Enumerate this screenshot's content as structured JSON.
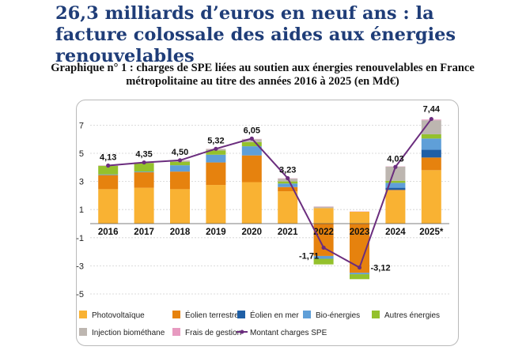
{
  "headline": "26,3 milliards d’euros en neuf ans : la facture colossale des aides aux énergies renouvelables",
  "subtitle": "Graphique n° 1 : charges de SPE liées au soutien aux énergies renouvelables en France métropolitaine au titre des années 2016 à 2025 (en Md€)",
  "colors": {
    "Photovoltaïque": "#f9b233",
    "Éolien terrestre": "#e6820e",
    "Éolien en mer": "#1f5fa6",
    "Bio-énergies": "#5f9fd8",
    "Autres énergies": "#94c12c",
    "Injection biométhane": "#bdb6b0",
    "Frais de gestion": "#e79ac0",
    "Montant charges SPE": "#6b2d7e"
  },
  "chart_data": {
    "type": "bar",
    "stacked": true,
    "categories": [
      "2016",
      "2017",
      "2018",
      "2019",
      "2020",
      "2021",
      "2022",
      "2023",
      "2024",
      "2025*"
    ],
    "yticks": [
      7,
      5,
      3,
      1,
      -1,
      -3,
      -5
    ],
    "ylim": [
      -5.4,
      7.6
    ],
    "grid": true,
    "legend_position": "bottom",
    "series": [
      {
        "name": "Photovoltaïque",
        "values": [
          2.45,
          2.55,
          2.45,
          2.75,
          2.95,
          2.3,
          1.1,
          0.85,
          2.35,
          3.8
        ]
      },
      {
        "name": "Éolien terrestre",
        "values": [
          1.0,
          1.1,
          1.25,
          1.6,
          1.9,
          0.3,
          -2.3,
          -3.5,
          0.05,
          0.9
        ]
      },
      {
        "name": "Éolien en mer",
        "values": [
          0,
          0,
          0,
          0,
          0,
          0,
          0,
          0,
          0.15,
          0.55
        ]
      },
      {
        "name": "Bio-énergies",
        "values": [
          0.05,
          0.05,
          0.45,
          0.55,
          0.65,
          0.25,
          -0.2,
          -0.1,
          0.35,
          0.8
        ]
      },
      {
        "name": "Autres énergies",
        "values": [
          0.6,
          0.6,
          0.25,
          0.3,
          0.3,
          0.15,
          -0.4,
          -0.35,
          0.15,
          0.3
        ]
      },
      {
        "name": "Injection biométhane",
        "values": [
          0.02,
          0.04,
          0.08,
          0.1,
          0.2,
          0.2,
          0.1,
          0.0,
          1.0,
          1.0
        ]
      },
      {
        "name": "Frais de gestion",
        "values": [
          0.02,
          0.02,
          0.02,
          0.02,
          0.02,
          0.02,
          0.02,
          0.02,
          0.02,
          0.05
        ]
      }
    ],
    "line": {
      "name": "Montant charges SPE",
      "values": [
        4.13,
        4.35,
        4.5,
        5.32,
        6.05,
        3.23,
        -1.71,
        -3.12,
        4.03,
        7.44
      ],
      "labels": [
        "4,13",
        "4,35",
        "4,50",
        "5,32",
        "6,05",
        "3,23",
        "-1,71",
        "-3,12",
        "4,03",
        "7,44"
      ]
    },
    "legend": [
      "Photovoltaïque",
      "Éolien terrestre",
      "Éolien en mer",
      "Bio-énergies",
      "Autres énergies",
      "Injection biométhane",
      "Frais de gestion",
      "Montant charges SPE"
    ]
  }
}
